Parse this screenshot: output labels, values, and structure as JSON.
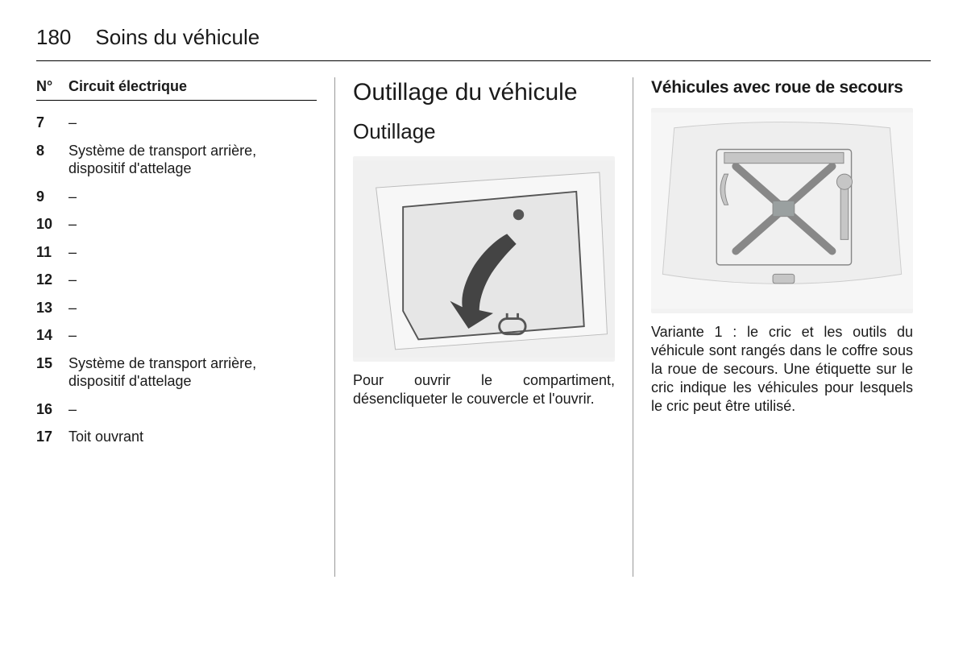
{
  "header": {
    "page_number": "180",
    "title": "Soins du véhicule"
  },
  "left": {
    "table_header": {
      "num": "N°",
      "label": "Circuit électrique"
    },
    "rows": [
      {
        "num": "7",
        "label": "–"
      },
      {
        "num": "8",
        "label": "Système de transport arrière, dispositif d'attelage"
      },
      {
        "num": "9",
        "label": "–"
      },
      {
        "num": "10",
        "label": "–"
      },
      {
        "num": "11",
        "label": "–"
      },
      {
        "num": "12",
        "label": "–"
      },
      {
        "num": "13",
        "label": "–"
      },
      {
        "num": "14",
        "label": "–"
      },
      {
        "num": "15",
        "label": "Système de transport arrière, dispositif d'attelage"
      },
      {
        "num": "16",
        "label": "–"
      },
      {
        "num": "17",
        "label": "Toit ouvrant"
      }
    ]
  },
  "middle": {
    "heading1": "Outillage du véhicule",
    "heading2": "Outillage",
    "paragraph": "Pour ouvrir le compartiment, désencliqueter le couvercle et l'ouvrir.",
    "figure": {
      "bg": "#f0f0f0",
      "panel_fill": "#e6e6e6",
      "panel_stroke": "#555555",
      "arrow_color": "#444444",
      "knob_color": "#555555",
      "handle_stroke": "#555555"
    }
  },
  "right": {
    "heading3": "Véhicules avec roue de secours",
    "paragraph": "Variante 1 : le cric et les outils du véhicule sont rangés dans le coffre sous la roue de secours. Une étiquette sur le cric indique les véhicules pour lesquels le cric peut être utilisé.",
    "figure": {
      "bg": "#f6f6f6",
      "well_fill": "#eeeeee",
      "well_stroke": "#cccccc",
      "tool_fill": "#c6c6c6",
      "tool_stroke": "#888888",
      "accent": "#9aa0a0"
    }
  }
}
